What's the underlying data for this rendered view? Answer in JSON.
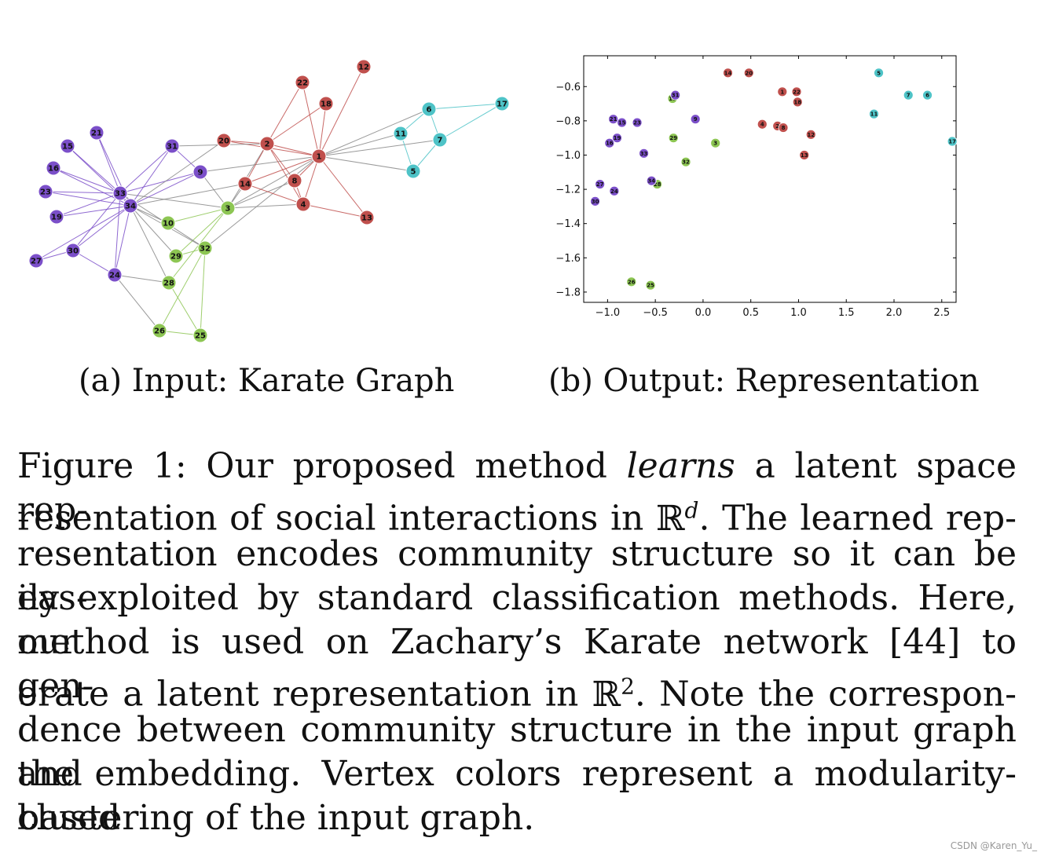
{
  "colors": {
    "red": "#c0504d",
    "purple": "#7b4fc9",
    "green": "#8dc653",
    "cyan": "#4ec3c7",
    "edge_gray": "#888888"
  },
  "graph": {
    "caption": "(a) Input: Karate Graph",
    "nodes": [
      {
        "id": "1",
        "group": "red"
      },
      {
        "id": "2",
        "group": "red"
      },
      {
        "id": "3",
        "group": "green"
      },
      {
        "id": "4",
        "group": "red"
      },
      {
        "id": "5",
        "group": "cyan"
      },
      {
        "id": "6",
        "group": "cyan"
      },
      {
        "id": "7",
        "group": "cyan"
      },
      {
        "id": "8",
        "group": "red"
      },
      {
        "id": "9",
        "group": "purple"
      },
      {
        "id": "10",
        "group": "green"
      },
      {
        "id": "11",
        "group": "cyan"
      },
      {
        "id": "12",
        "group": "red"
      },
      {
        "id": "13",
        "group": "red"
      },
      {
        "id": "14",
        "group": "red"
      },
      {
        "id": "15",
        "group": "purple"
      },
      {
        "id": "16",
        "group": "purple"
      },
      {
        "id": "17",
        "group": "cyan"
      },
      {
        "id": "18",
        "group": "red"
      },
      {
        "id": "19",
        "group": "purple"
      },
      {
        "id": "20",
        "group": "red"
      },
      {
        "id": "21",
        "group": "purple"
      },
      {
        "id": "22",
        "group": "red"
      },
      {
        "id": "23",
        "group": "purple"
      },
      {
        "id": "24",
        "group": "purple"
      },
      {
        "id": "25",
        "group": "green"
      },
      {
        "id": "26",
        "group": "green"
      },
      {
        "id": "27",
        "group": "purple"
      },
      {
        "id": "28",
        "group": "green"
      },
      {
        "id": "29",
        "group": "green"
      },
      {
        "id": "30",
        "group": "purple"
      },
      {
        "id": "31",
        "group": "purple"
      },
      {
        "id": "32",
        "group": "green"
      },
      {
        "id": "33",
        "group": "purple"
      },
      {
        "id": "34",
        "group": "purple"
      }
    ],
    "edges": [
      [
        "1",
        "2"
      ],
      [
        "1",
        "3"
      ],
      [
        "1",
        "4"
      ],
      [
        "1",
        "5"
      ],
      [
        "1",
        "6"
      ],
      [
        "1",
        "7"
      ],
      [
        "1",
        "8"
      ],
      [
        "1",
        "9"
      ],
      [
        "1",
        "11"
      ],
      [
        "1",
        "12"
      ],
      [
        "1",
        "13"
      ],
      [
        "1",
        "14"
      ],
      [
        "1",
        "18"
      ],
      [
        "1",
        "20"
      ],
      [
        "1",
        "22"
      ],
      [
        "1",
        "32"
      ],
      [
        "2",
        "3"
      ],
      [
        "2",
        "4"
      ],
      [
        "2",
        "8"
      ],
      [
        "2",
        "14"
      ],
      [
        "2",
        "18"
      ],
      [
        "2",
        "20"
      ],
      [
        "2",
        "22"
      ],
      [
        "2",
        "31"
      ],
      [
        "3",
        "4"
      ],
      [
        "3",
        "8"
      ],
      [
        "3",
        "9"
      ],
      [
        "3",
        "10"
      ],
      [
        "3",
        "14"
      ],
      [
        "3",
        "28"
      ],
      [
        "3",
        "29"
      ],
      [
        "3",
        "33"
      ],
      [
        "4",
        "8"
      ],
      [
        "4",
        "13"
      ],
      [
        "4",
        "14"
      ],
      [
        "5",
        "7"
      ],
      [
        "5",
        "11"
      ],
      [
        "6",
        "7"
      ],
      [
        "6",
        "11"
      ],
      [
        "6",
        "17"
      ],
      [
        "7",
        "17"
      ],
      [
        "9",
        "31"
      ],
      [
        "9",
        "33"
      ],
      [
        "9",
        "34"
      ],
      [
        "10",
        "34"
      ],
      [
        "14",
        "34"
      ],
      [
        "15",
        "33"
      ],
      [
        "15",
        "34"
      ],
      [
        "16",
        "33"
      ],
      [
        "16",
        "34"
      ],
      [
        "19",
        "33"
      ],
      [
        "19",
        "34"
      ],
      [
        "20",
        "34"
      ],
      [
        "21",
        "33"
      ],
      [
        "21",
        "34"
      ],
      [
        "23",
        "33"
      ],
      [
        "23",
        "34"
      ],
      [
        "24",
        "26"
      ],
      [
        "24",
        "28"
      ],
      [
        "24",
        "30"
      ],
      [
        "24",
        "33"
      ],
      [
        "24",
        "34"
      ],
      [
        "25",
        "26"
      ],
      [
        "25",
        "28"
      ],
      [
        "25",
        "32"
      ],
      [
        "26",
        "32"
      ],
      [
        "27",
        "30"
      ],
      [
        "27",
        "34"
      ],
      [
        "28",
        "34"
      ],
      [
        "29",
        "32"
      ],
      [
        "29",
        "34"
      ],
      [
        "30",
        "33"
      ],
      [
        "30",
        "34"
      ],
      [
        "31",
        "33"
      ],
      [
        "31",
        "34"
      ],
      [
        "32",
        "33"
      ],
      [
        "32",
        "34"
      ],
      [
        "33",
        "34"
      ]
    ]
  },
  "chart_data": {
    "type": "scatter",
    "caption": "(b) Output: Representation",
    "xlim": [
      -1.25,
      2.65
    ],
    "ylim": [
      -1.86,
      -0.42
    ],
    "xticks": [
      -1.0,
      -0.5,
      0.0,
      0.5,
      1.0,
      1.5,
      2.0,
      2.5
    ],
    "xtick_labels": [
      "−1.0",
      "−0.5",
      "0.0",
      "0.5",
      "1.0",
      "1.5",
      "2.0",
      "2.5"
    ],
    "yticks": [
      -0.6,
      -0.8,
      -1.0,
      -1.2,
      -1.4,
      -1.6,
      -1.8
    ],
    "ytick_labels": [
      "−0.6",
      "−0.8",
      "−1.0",
      "−1.2",
      "−1.4",
      "−1.6",
      "−1.8"
    ],
    "grid": false,
    "points": [
      {
        "label": "1",
        "x": 0.83,
        "y": -0.63,
        "group": "red"
      },
      {
        "label": "2",
        "x": 0.78,
        "y": -0.83,
        "group": "red"
      },
      {
        "label": "3",
        "x": 0.13,
        "y": -0.93,
        "group": "green"
      },
      {
        "label": "4",
        "x": 0.62,
        "y": -0.82,
        "group": "red"
      },
      {
        "label": "5",
        "x": 1.84,
        "y": -0.52,
        "group": "cyan"
      },
      {
        "label": "6",
        "x": 2.35,
        "y": -0.65,
        "group": "cyan"
      },
      {
        "label": "7",
        "x": 2.15,
        "y": -0.65,
        "group": "cyan"
      },
      {
        "label": "8",
        "x": 0.84,
        "y": -0.84,
        "group": "red"
      },
      {
        "label": "9",
        "x": -0.08,
        "y": -0.79,
        "group": "purple"
      },
      {
        "label": "10",
        "x": -0.32,
        "y": -0.67,
        "group": "green"
      },
      {
        "label": "11",
        "x": 1.79,
        "y": -0.76,
        "group": "cyan"
      },
      {
        "label": "12",
        "x": 1.13,
        "y": -0.88,
        "group": "red"
      },
      {
        "label": "13",
        "x": 1.06,
        "y": -1.0,
        "group": "red"
      },
      {
        "label": "14",
        "x": 0.26,
        "y": -0.52,
        "group": "red"
      },
      {
        "label": "15",
        "x": -0.85,
        "y": -0.81,
        "group": "purple"
      },
      {
        "label": "16",
        "x": -0.98,
        "y": -0.93,
        "group": "purple"
      },
      {
        "label": "17",
        "x": 2.61,
        "y": -0.92,
        "group": "cyan"
      },
      {
        "label": "18",
        "x": 0.99,
        "y": -0.69,
        "group": "red"
      },
      {
        "label": "19",
        "x": -0.9,
        "y": -0.9,
        "group": "purple"
      },
      {
        "label": "20",
        "x": 0.48,
        "y": -0.52,
        "group": "red"
      },
      {
        "label": "21",
        "x": -0.94,
        "y": -0.79,
        "group": "purple"
      },
      {
        "label": "22",
        "x": 0.98,
        "y": -0.63,
        "group": "red"
      },
      {
        "label": "23",
        "x": -0.69,
        "y": -0.81,
        "group": "purple"
      },
      {
        "label": "24",
        "x": -0.93,
        "y": -1.21,
        "group": "purple"
      },
      {
        "label": "25",
        "x": -0.55,
        "y": -1.76,
        "group": "green"
      },
      {
        "label": "26",
        "x": -0.75,
        "y": -1.74,
        "group": "green"
      },
      {
        "label": "27",
        "x": -1.08,
        "y": -1.17,
        "group": "purple"
      },
      {
        "label": "28",
        "x": -0.48,
        "y": -1.17,
        "group": "green"
      },
      {
        "label": "29",
        "x": -0.31,
        "y": -0.9,
        "group": "green"
      },
      {
        "label": "30",
        "x": -1.13,
        "y": -1.27,
        "group": "purple"
      },
      {
        "label": "31",
        "x": -0.29,
        "y": -0.65,
        "group": "purple"
      },
      {
        "label": "32",
        "x": -0.18,
        "y": -1.04,
        "group": "green"
      },
      {
        "label": "33",
        "x": -0.62,
        "y": -0.99,
        "group": "purple"
      },
      {
        "label": "34",
        "x": -0.54,
        "y": -1.15,
        "group": "purple"
      }
    ]
  },
  "caption": {
    "lines": [
      [
        "Figure 1: Our proposed method ",
        {
          "i": "learns"
        },
        " a latent space rep-"
      ],
      [
        "resentation of social interactions in ",
        {
          "m": "R^d"
        },
        ".  The learned rep-"
      ],
      [
        "resentation encodes community structure so it can be eas-"
      ],
      [
        "ily exploited by standard classification methods. Here, our"
      ],
      [
        "method is used on Zachary’s Karate network [44] to gen-"
      ],
      [
        "erate a latent representation in ",
        {
          "m": "R^2"
        },
        ".  Note the correspon-"
      ],
      [
        "dence between community structure in the input graph and"
      ],
      [
        "the embedding. Vertex colors represent a modularity-based"
      ],
      [
        "clustering of the input graph."
      ]
    ]
  },
  "watermark": "CSDN @Karen_Yu_"
}
